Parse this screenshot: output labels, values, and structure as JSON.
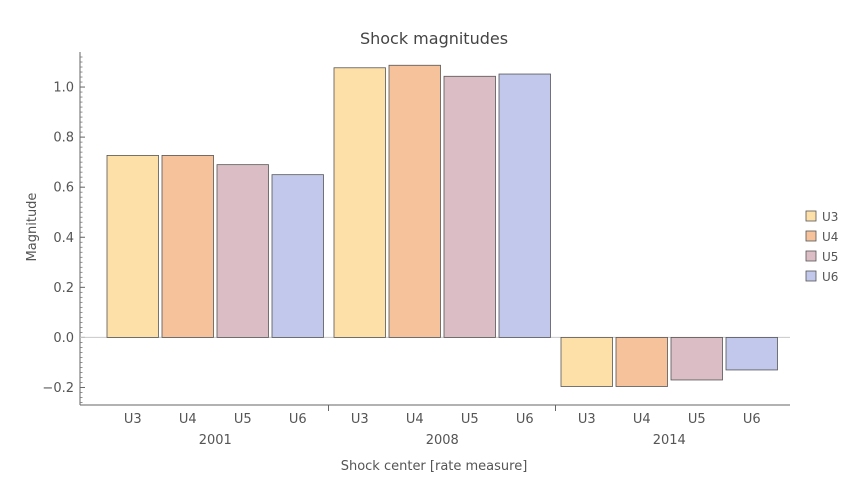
{
  "chart_data": {
    "type": "bar",
    "title": "Shock magnitudes",
    "xlabel": "Shock center [rate measure]",
    "ylabel": "Magnitude",
    "ylim": [
      -0.27,
      1.14
    ],
    "yticks": [
      "−0.2",
      "0.0",
      "0.2",
      "0.4",
      "0.6",
      "0.8",
      "1.0"
    ],
    "yticks_values": [
      -0.2,
      0.0,
      0.2,
      0.4,
      0.6,
      0.8,
      1.0
    ],
    "grid": false,
    "legend_position": "right",
    "groups": [
      {
        "label": "2001",
        "values": [
          0.727,
          0.727,
          0.69,
          0.65
        ]
      },
      {
        "label": "2008",
        "values": [
          1.077,
          1.087,
          1.043,
          1.052
        ]
      },
      {
        "label": "2014",
        "values": [
          -0.196,
          -0.196,
          -0.17,
          -0.13
        ]
      }
    ],
    "series": [
      {
        "name": "U3",
        "color": "#fde0a8"
      },
      {
        "name": "U4",
        "color": "#f5c29c"
      },
      {
        "name": "U5",
        "color": "#dbbec5"
      },
      {
        "name": "U6",
        "color": "#c1c8eb"
      }
    ]
  }
}
